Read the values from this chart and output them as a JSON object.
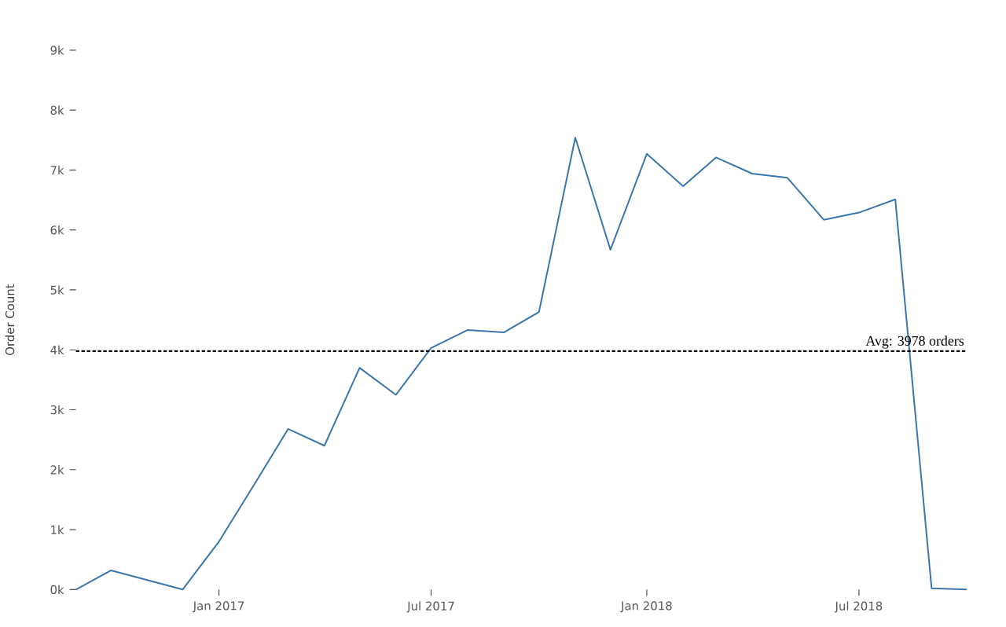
{
  "chart_data": {
    "type": "line",
    "ylabel": "Order Count",
    "x": [
      "2016-09-01",
      "2016-10-01",
      "2016-12-01",
      "2017-01-01",
      "2017-02-01",
      "2017-03-01",
      "2017-04-01",
      "2017-05-01",
      "2017-06-01",
      "2017-07-01",
      "2017-08-01",
      "2017-09-01",
      "2017-10-01",
      "2017-11-01",
      "2017-12-01",
      "2018-01-01",
      "2018-02-01",
      "2018-03-01",
      "2018-04-01",
      "2018-05-01",
      "2018-06-01",
      "2018-07-01",
      "2018-08-01",
      "2018-09-01",
      "2018-10-01"
    ],
    "series": [
      {
        "color": "#3a76ad",
        "values": [
          0,
          320,
          0,
          800,
          1780,
          2680,
          2400,
          3700,
          3250,
          4030,
          4330,
          4290,
          4630,
          7540,
          5670,
          7270,
          6730,
          7210,
          6940,
          6870,
          6170,
          6290,
          6510,
          20,
          0
        ]
      }
    ],
    "xlim": [
      "2016-09-01",
      "2018-10-01"
    ],
    "ylim": [
      0,
      9000
    ],
    "xticks": [
      {
        "value": "2017-01-01",
        "label": "Jan 2017"
      },
      {
        "value": "2017-07-01",
        "label": "Jul 2017"
      },
      {
        "value": "2018-01-01",
        "label": "Jan 2018"
      },
      {
        "value": "2018-07-01",
        "label": "Jul 2018"
      }
    ],
    "yticks": [
      {
        "value": 0,
        "label": "0k"
      },
      {
        "value": 1000,
        "label": "1k"
      },
      {
        "value": 2000,
        "label": "2k"
      },
      {
        "value": 3000,
        "label": "3k"
      },
      {
        "value": 4000,
        "label": "4k"
      },
      {
        "value": 5000,
        "label": "5k"
      },
      {
        "value": 6000,
        "label": "6k"
      },
      {
        "value": 7000,
        "label": "7k"
      },
      {
        "value": 8000,
        "label": "8k"
      },
      {
        "value": 9000,
        "label": "9k"
      }
    ],
    "ref_lines": [
      {
        "axis": "y",
        "value": 3978,
        "label": "Avg: 3978 orders",
        "color": "#000000",
        "line_style": "dashed"
      }
    ]
  }
}
